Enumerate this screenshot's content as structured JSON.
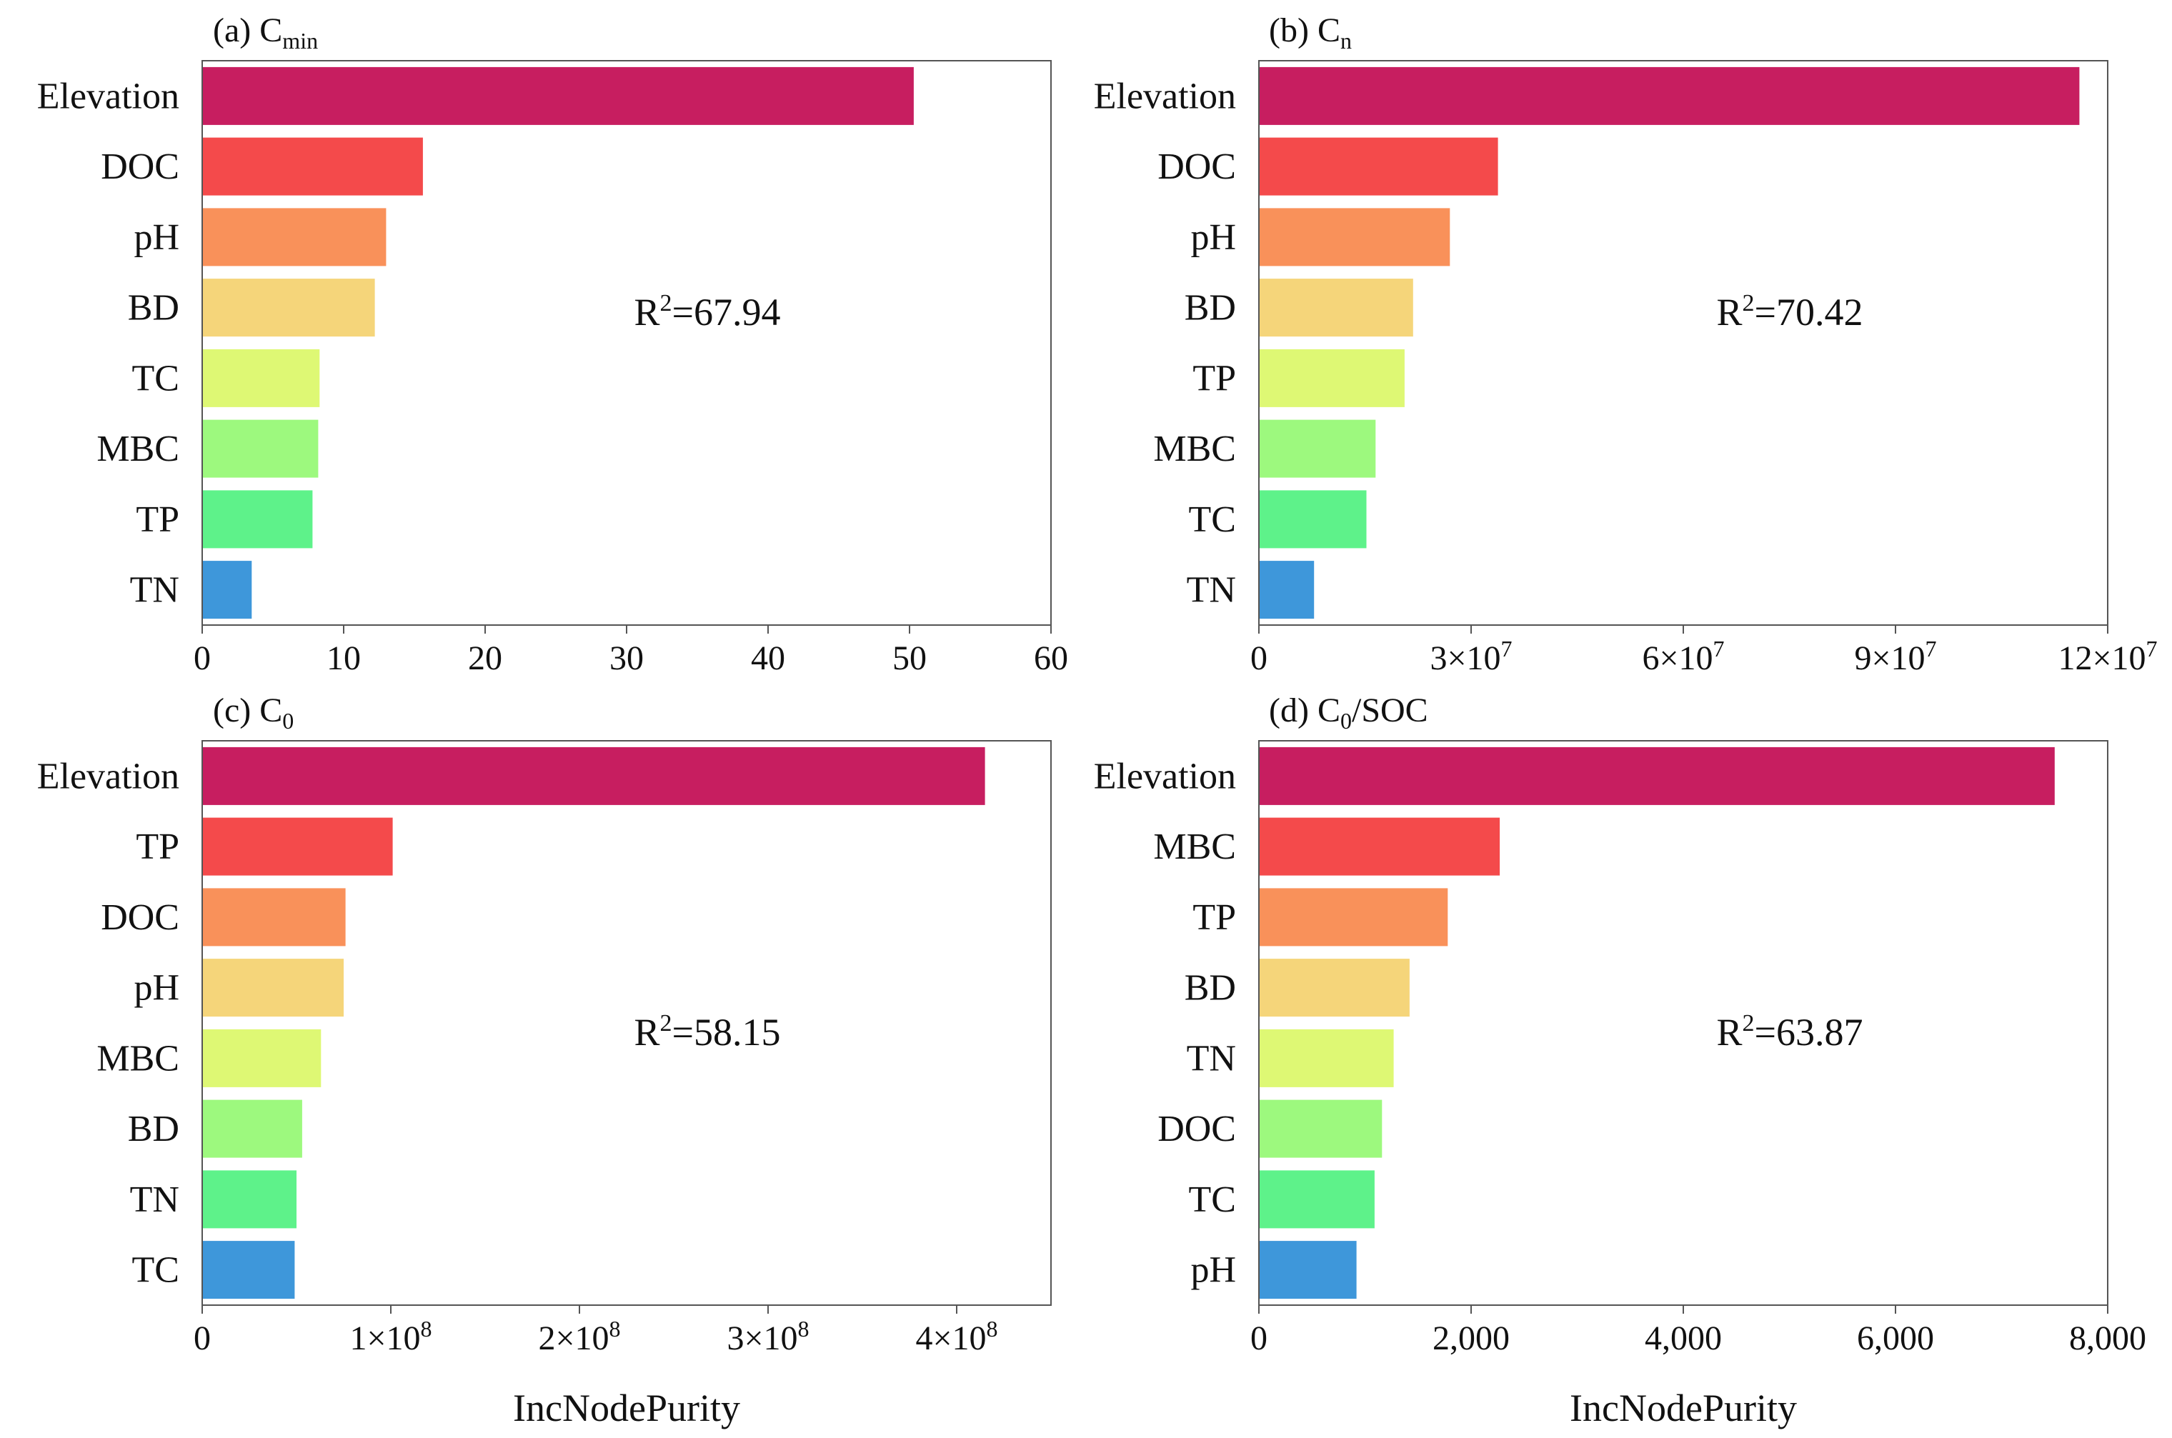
{
  "figure": {
    "shared_xlabel": "IncNodePurity"
  },
  "chart_data": [
    {
      "type": "bar",
      "orientation": "horizontal",
      "title_prefix": "(a) C",
      "title_sub": "min",
      "categories": [
        "Elevation",
        "DOC",
        "pH",
        "BD",
        "TC",
        "MBC",
        "TP",
        "TN"
      ],
      "values": [
        50.3,
        15.6,
        13.0,
        12.2,
        8.3,
        8.2,
        7.8,
        3.5
      ],
      "colors": [
        "#C71E60",
        "#F44A4B",
        "#F9915A",
        "#F5D57A",
        "#DEF874",
        "#9DF97E",
        "#5EF28A",
        "#3E97DA"
      ],
      "xlim": [
        0,
        60
      ],
      "ticks": [
        {
          "v": 0,
          "label": "0"
        },
        {
          "v": 10,
          "label": "10"
        },
        {
          "v": 20,
          "label": "20"
        },
        {
          "v": 30,
          "label": "30"
        },
        {
          "v": 40,
          "label": "40"
        },
        {
          "v": 50,
          "label": "50"
        },
        {
          "v": 60,
          "label": "60"
        }
      ],
      "r2_prefix": "R",
      "r2_sup": "2",
      "r2_text": "=67.94",
      "xlabel": ""
    },
    {
      "type": "bar",
      "orientation": "horizontal",
      "title_prefix": "(b) C",
      "title_sub": "n",
      "categories": [
        "Elevation",
        "DOC",
        "pH",
        "BD",
        "TP",
        "MBC",
        "TC",
        "TN"
      ],
      "values": [
        116000000,
        33800000,
        27000000,
        21800000,
        20600000,
        16500000,
        15200000,
        7800000
      ],
      "colors": [
        "#C71E60",
        "#F44A4B",
        "#F9915A",
        "#F5D57A",
        "#DEF874",
        "#9DF97E",
        "#5EF28A",
        "#3E97DA"
      ],
      "xlim": [
        0,
        120000000
      ],
      "ticks": [
        {
          "v": 0,
          "label": "0"
        },
        {
          "v": 30000000,
          "label": "3×10",
          "sup": "7"
        },
        {
          "v": 60000000,
          "label": "6×10",
          "sup": "7"
        },
        {
          "v": 90000000,
          "label": "9×10",
          "sup": "7"
        },
        {
          "v": 120000000,
          "label": "12×10",
          "sup": "7"
        }
      ],
      "r2_prefix": "R",
      "r2_sup": "2",
      "r2_text": "=70.42",
      "xlabel": ""
    },
    {
      "type": "bar",
      "orientation": "horizontal",
      "title_prefix": "(c) C",
      "title_sub": "0",
      "categories": [
        "Elevation",
        "TP",
        "DOC",
        "pH",
        "MBC",
        "BD",
        "TN",
        "TC"
      ],
      "values": [
        415000000,
        101000000,
        76000000,
        75000000,
        63000000,
        53000000,
        50000000,
        49000000
      ],
      "colors": [
        "#C71E60",
        "#F44A4B",
        "#F9915A",
        "#F5D57A",
        "#DEF874",
        "#9DF97E",
        "#5EF28A",
        "#3E97DA"
      ],
      "xlim": [
        0,
        450000000
      ],
      "ticks": [
        {
          "v": 0,
          "label": "0"
        },
        {
          "v": 100000000,
          "label": "1×10",
          "sup": "8"
        },
        {
          "v": 200000000,
          "label": "2×10",
          "sup": "8"
        },
        {
          "v": 300000000,
          "label": "3×10",
          "sup": "8"
        },
        {
          "v": 400000000,
          "label": "4×10",
          "sup": "8"
        }
      ],
      "r2_prefix": "R",
      "r2_sup": "2",
      "r2_text": "=58.15",
      "xlabel": "IncNodePurity"
    },
    {
      "type": "bar",
      "orientation": "horizontal",
      "title_prefix": "(d) C",
      "title_sub": "0",
      "title_suffix": "/SOC",
      "categories": [
        "Elevation",
        "MBC",
        "TP",
        "BD",
        "TN",
        "DOC",
        "TC",
        "pH"
      ],
      "values": [
        7500,
        2270,
        1780,
        1420,
        1270,
        1160,
        1090,
        920
      ],
      "colors": [
        "#C71E60",
        "#F44A4B",
        "#F9915A",
        "#F5D57A",
        "#DEF874",
        "#9DF97E",
        "#5EF28A",
        "#3E97DA"
      ],
      "xlim": [
        0,
        8000
      ],
      "ticks": [
        {
          "v": 0,
          "label": "0"
        },
        {
          "v": 2000,
          "label": "2,000"
        },
        {
          "v": 4000,
          "label": "4,000"
        },
        {
          "v": 6000,
          "label": "6,000"
        },
        {
          "v": 8000,
          "label": "8,000"
        }
      ],
      "r2_prefix": "R",
      "r2_sup": "2",
      "r2_text": "=63.87",
      "xlabel": "IncNodePurity"
    }
  ]
}
